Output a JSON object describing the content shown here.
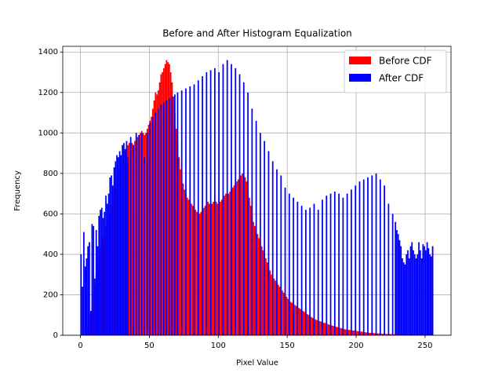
{
  "chart_data": {
    "type": "histogram",
    "title": "Before and After Histogram Equalization",
    "x_label": "Pixel Value",
    "y_label": "Frequency",
    "bins": [
      0,
      1,
      2,
      3,
      4,
      5,
      6,
      7,
      8,
      9,
      10,
      11,
      12,
      13,
      14,
      15,
      16,
      17,
      18,
      19,
      20,
      21,
      22,
      23,
      24,
      25,
      26,
      27,
      28,
      29,
      30,
      31,
      32,
      33,
      34,
      35,
      36,
      37,
      38,
      39,
      40,
      41,
      42,
      43,
      44,
      45,
      46,
      47,
      48,
      49,
      50,
      51,
      52,
      53,
      54,
      55,
      56,
      57,
      58,
      59,
      60,
      61,
      62,
      63,
      64,
      65,
      66,
      67,
      68,
      69,
      70,
      71,
      72,
      73,
      74,
      75,
      76,
      77,
      78,
      79,
      80,
      81,
      82,
      83,
      84,
      85,
      86,
      87,
      88,
      89,
      90,
      91,
      92,
      93,
      94,
      95,
      96,
      97,
      98,
      99,
      100,
      101,
      102,
      103,
      104,
      105,
      106,
      107,
      108,
      109,
      110,
      111,
      112,
      113,
      114,
      115,
      116,
      117,
      118,
      119,
      120,
      121,
      122,
      123,
      124,
      125,
      126,
      127,
      128,
      129,
      130,
      131,
      132,
      133,
      134,
      135,
      136,
      137,
      138,
      139,
      140,
      141,
      142,
      143,
      144,
      145,
      146,
      147,
      148,
      149,
      150,
      151,
      152,
      153,
      154,
      155,
      156,
      157,
      158,
      159,
      160,
      161,
      162,
      163,
      164,
      165,
      166,
      167,
      168,
      169,
      170,
      171,
      172,
      173,
      174,
      175,
      176,
      177,
      178,
      179,
      180,
      181,
      182,
      183,
      184,
      185,
      186,
      187,
      188,
      189,
      190,
      191,
      192,
      193,
      194,
      195,
      196,
      197,
      198,
      199,
      200,
      201,
      202,
      203,
      204,
      205,
      206,
      207,
      208,
      209,
      210,
      211,
      212,
      213,
      214,
      215,
      216,
      217,
      218,
      219,
      220,
      221,
      222,
      223,
      224,
      225,
      226,
      227,
      228,
      229,
      230,
      231,
      232,
      233,
      234,
      235,
      236,
      237,
      238,
      239,
      240,
      241,
      242,
      243,
      244,
      245,
      246,
      247,
      248,
      249,
      250,
      251,
      252,
      253,
      254,
      255,
      256
    ],
    "series": [
      {
        "name": "Before CDF",
        "color": "#ff0000",
        "values": [
          0,
          0,
          0,
          5,
          20,
          40,
          70,
          100,
          120,
          180,
          250,
          300,
          350,
          400,
          430,
          460,
          490,
          520,
          540,
          560,
          580,
          610,
          640,
          680,
          720,
          750,
          780,
          800,
          820,
          850,
          870,
          890,
          910,
          930,
          940,
          950,
          960,
          950,
          940,
          960,
          970,
          980,
          990,
          1000,
          1010,
          1000,
          990,
          1000,
          1020,
          1040,
          1060,
          1080,
          1120,
          1160,
          1200,
          1190,
          1210,
          1250,
          1290,
          1300,
          1320,
          1340,
          1360,
          1350,
          1340,
          1300,
          1250,
          1180,
          1100,
          1020,
          950,
          880,
          820,
          780,
          750,
          720,
          700,
          680,
          670,
          660,
          650,
          640,
          630,
          620,
          610,
          600,
          600,
          610,
          620,
          630,
          640,
          650,
          660,
          650,
          640,
          650,
          660,
          670,
          660,
          650,
          650,
          660,
          670,
          680,
          690,
          700,
          690,
          700,
          710,
          720,
          730,
          740,
          750,
          760,
          770,
          780,
          790,
          800,
          790,
          780,
          760,
          720,
          680,
          640,
          600,
          560,
          540,
          520,
          500,
          480,
          460,
          440,
          420,
          400,
          380,
          360,
          340,
          320,
          300,
          290,
          280,
          270,
          260,
          250,
          240,
          230,
          220,
          210,
          200,
          190,
          180,
          170,
          165,
          160,
          155,
          150,
          145,
          140,
          135,
          130,
          125,
          120,
          115,
          110,
          105,
          100,
          95,
          90,
          85,
          80,
          78,
          75,
          72,
          70,
          68,
          65,
          62,
          60,
          58,
          55,
          52,
          50,
          48,
          46,
          44,
          42,
          40,
          38,
          36,
          34,
          32,
          30,
          29,
          28,
          27,
          26,
          25,
          24,
          23,
          22,
          21,
          20,
          19,
          18,
          17,
          16,
          15,
          14,
          13,
          12,
          12,
          11,
          11,
          10,
          10,
          9,
          9,
          8,
          8,
          7,
          7,
          7,
          6,
          6,
          6,
          5,
          5,
          5,
          4,
          4,
          4,
          4,
          3,
          3,
          3,
          3,
          2,
          2,
          2,
          2,
          2,
          2,
          2,
          1,
          1,
          1,
          1,
          1,
          1,
          1,
          1,
          1,
          1,
          1,
          160,
          440
        ]
      },
      {
        "name": "After CDF",
        "color": "#0000ff",
        "values": [
          400,
          240,
          510,
          340,
          380,
          440,
          460,
          120,
          550,
          540,
          280,
          520,
          440,
          590,
          620,
          630,
          580,
          610,
          690,
          650,
          700,
          780,
          790,
          740,
          830,
          860,
          890,
          880,
          910,
          890,
          940,
          950,
          920,
          960,
          880,
          0,
          980,
          0,
          940,
          0,
          1000,
          0,
          990,
          0,
          1000,
          0,
          880,
          0,
          1000,
          0,
          1050,
          0,
          1080,
          0,
          1100,
          0,
          1120,
          0,
          1140,
          0,
          1150,
          0,
          1160,
          0,
          1170,
          0,
          1180,
          0,
          1190,
          0,
          1200,
          0,
          0,
          1210,
          0,
          0,
          1220,
          0,
          0,
          1230,
          0,
          0,
          1240,
          0,
          0,
          1260,
          0,
          0,
          1280,
          0,
          0,
          1300,
          0,
          0,
          1310,
          0,
          0,
          1320,
          0,
          0,
          1300,
          0,
          0,
          1340,
          0,
          0,
          1360,
          0,
          0,
          1340,
          0,
          0,
          1320,
          0,
          0,
          1290,
          0,
          0,
          1250,
          0,
          0,
          1200,
          0,
          0,
          1120,
          0,
          0,
          1060,
          0,
          0,
          1000,
          0,
          0,
          960,
          0,
          0,
          910,
          0,
          0,
          860,
          0,
          0,
          820,
          0,
          0,
          790,
          0,
          0,
          730,
          0,
          0,
          700,
          0,
          0,
          680,
          0,
          0,
          660,
          0,
          0,
          640,
          0,
          0,
          620,
          0,
          0,
          630,
          0,
          0,
          650,
          0,
          0,
          620,
          0,
          0,
          670,
          0,
          0,
          690,
          0,
          0,
          700,
          0,
          0,
          710,
          0,
          0,
          700,
          0,
          0,
          680,
          0,
          0,
          700,
          0,
          0,
          720,
          0,
          0,
          740,
          0,
          0,
          760,
          0,
          0,
          770,
          0,
          0,
          780,
          0,
          0,
          790,
          0,
          0,
          800,
          0,
          0,
          770,
          0,
          0,
          740,
          0,
          0,
          650,
          0,
          0,
          600,
          0,
          560,
          520,
          500,
          470,
          440,
          380,
          360,
          350,
          400,
          420,
          380,
          440,
          460,
          420,
          400,
          380,
          400,
          460,
          420,
          380,
          450,
          440,
          420,
          460,
          430,
          400,
          390,
          440
        ]
      }
    ],
    "xlim": [
      -12.8,
      268.8
    ],
    "ylim": [
      0,
      1428
    ],
    "xticks": [
      0,
      50,
      100,
      150,
      200,
      250
    ],
    "yticks": [
      0,
      200,
      400,
      600,
      800,
      1000,
      1200,
      1400
    ],
    "grid": true,
    "legend": "upper right"
  }
}
